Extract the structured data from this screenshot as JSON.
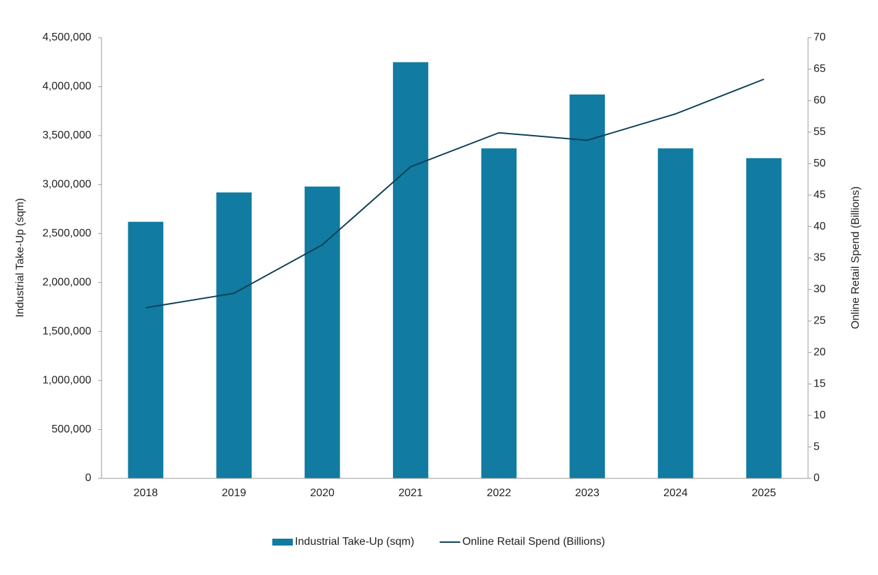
{
  "chart_data": {
    "type": "combo",
    "categories": [
      "2018",
      "2019",
      "2020",
      "2021",
      "2022",
      "2023",
      "2024",
      "2025"
    ],
    "y_label": "Industrial Take-Up (sqm)",
    "y2_label": "Online Retail Spend (Billions)",
    "series": [
      {
        "name": "Industrial Take-Up (sqm)",
        "type": "bar",
        "color": "#117ba1",
        "values": [
          2620000,
          2920000,
          2980000,
          4250000,
          3370000,
          3920000,
          3370000,
          3270000
        ]
      },
      {
        "name": "Online Retail Spend (Billions)",
        "type": "line",
        "axis": "y2",
        "color": "#0d3f55",
        "values": [
          27.1,
          29.4,
          37.1,
          49.5,
          54.9,
          53.7,
          57.9,
          63.4
        ]
      }
    ],
    "ylim": [
      0,
      4500000
    ],
    "yticks": [
      0,
      {
        "value": 500000,
        "label": "500,000"
      },
      {
        "value": 1000000,
        "label": "1,000,000"
      },
      {
        "value": 1500000,
        "label": "1,500,000"
      },
      {
        "value": 2000000,
        "label": "2,000,000"
      },
      {
        "value": 2500000,
        "label": "2,500,000"
      },
      {
        "value": 3000000,
        "label": "3,000,000"
      },
      {
        "value": 3500000,
        "label": "3,500,000"
      },
      {
        "value": 4000000,
        "label": "4,000,000"
      },
      {
        "value": 4500000,
        "label": "4,500,000"
      }
    ],
    "y2lim": [
      0,
      70
    ],
    "y2ticks": [
      0,
      5,
      10,
      15,
      20,
      25,
      30,
      35,
      40,
      45,
      50,
      55,
      60,
      65,
      70
    ],
    "grid": false,
    "legend": "bottom"
  }
}
